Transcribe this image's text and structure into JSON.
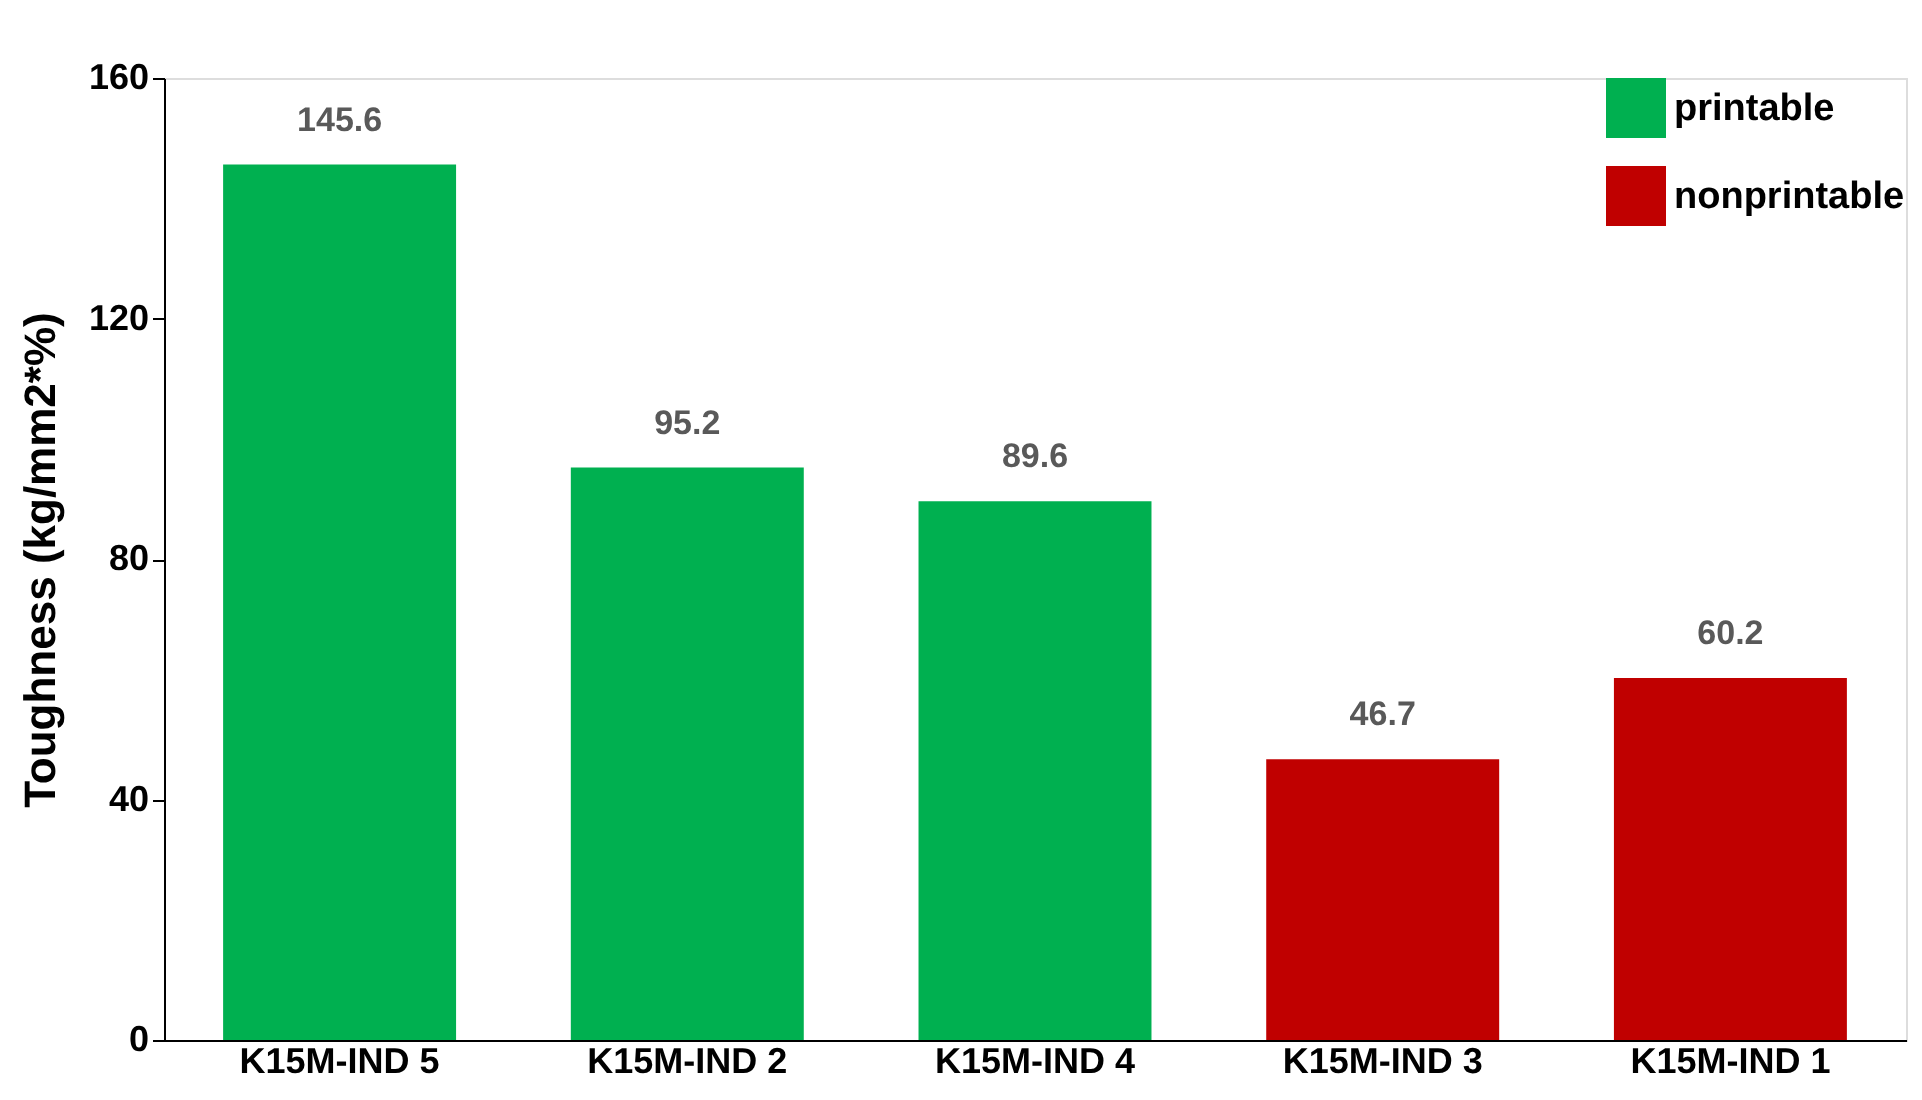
{
  "chart_data": {
    "type": "bar",
    "ylabel": "Toughness (kg/mm2*%)",
    "categories": [
      "K15M-IND 5",
      "K15M-IND 2",
      "K15M-IND 4",
      "K15M-IND 3",
      "K15M-IND 1"
    ],
    "series": [
      {
        "name": "printable",
        "color": "#00b050",
        "values": [
          145.6,
          95.2,
          89.6,
          null,
          null
        ]
      },
      {
        "name": "nonprintable",
        "color": "#c00000",
        "values": [
          null,
          null,
          null,
          46.7,
          60.2
        ]
      }
    ],
    "ylim": [
      0,
      160
    ],
    "yticks": [
      0,
      40,
      80,
      120,
      160
    ],
    "grid": false,
    "legend": "top right",
    "data_labels": true
  }
}
